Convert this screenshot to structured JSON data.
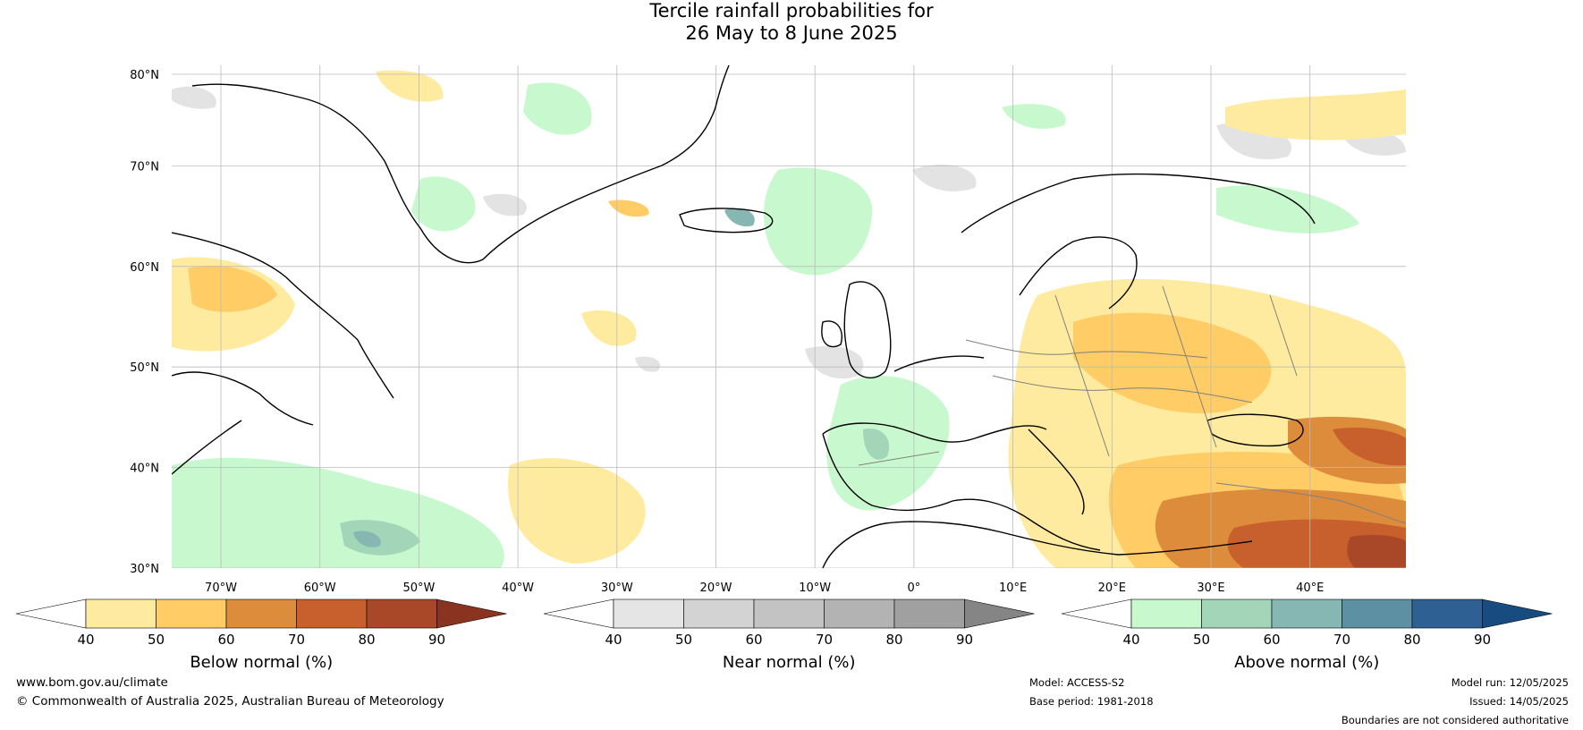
{
  "title": {
    "line1": "Tercile rainfall probabilities for",
    "line2": "26 May to 8 June 2025"
  },
  "map": {
    "lat_labels": [
      "80°N",
      "70°N",
      "60°N",
      "50°N",
      "40°N",
      "30°N"
    ],
    "lon_labels": [
      "70°W",
      "60°W",
      "50°W",
      "40°W",
      "30°W",
      "20°W",
      "10°W",
      "0°",
      "10°E",
      "20°E",
      "30°E",
      "40°E"
    ],
    "colors": {
      "land_outline": "#000000",
      "country_borders": "#808080",
      "gridlines": "#bbbbbb"
    }
  },
  "colorbars": [
    {
      "title": "Below normal (%)",
      "ticks": [
        "40",
        "50",
        "60",
        "70",
        "80",
        "90"
      ],
      "colors": [
        "#ffffff",
        "#ffeba0",
        "#ffcc66",
        "#dd8c3c",
        "#c8602e",
        "#a94828",
        "#8a3320"
      ]
    },
    {
      "title": "Near normal (%)",
      "ticks": [
        "40",
        "50",
        "60",
        "70",
        "80",
        "90"
      ],
      "colors": [
        "#ffffff",
        "#e5e5e5",
        "#d3d3d3",
        "#c3c3c3",
        "#b3b3b3",
        "#a0a0a0",
        "#858585"
      ]
    },
    {
      "title": "Above normal (%)",
      "ticks": [
        "40",
        "50",
        "60",
        "70",
        "80",
        "90"
      ],
      "colors": [
        "#ffffff",
        "#c8f8ce",
        "#a3d6b9",
        "#86b7b2",
        "#5c90a2",
        "#2f6093",
        "#184c80"
      ]
    }
  ],
  "footer": {
    "website": "www.bom.gov.au/climate",
    "copyright": "© Commonwealth of Australia 2025, Australian Bureau of Meteorology",
    "model": "Model: ACCESS-S2",
    "base_period": "Base period: 1981-2018",
    "model_run": "Model run: 12/05/2025",
    "issued": "Issued: 14/05/2025",
    "disclaimer": "Boundaries are not considered authoritative"
  }
}
